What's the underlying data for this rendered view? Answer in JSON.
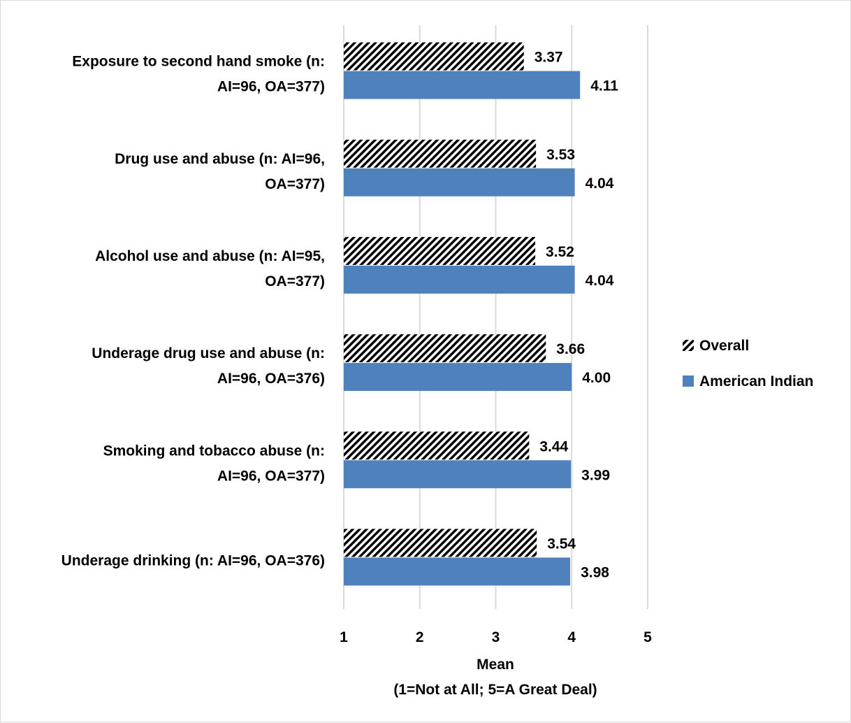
{
  "chart_data": {
    "type": "bar",
    "orientation": "horizontal",
    "categories": [
      [
        "Exposure to second hand smoke (n:",
        "AI=96, OA=377)"
      ],
      [
        "Drug use and abuse (n: AI=96,",
        "OA=377)"
      ],
      [
        "Alcohol use and abuse (n: AI=95,",
        "OA=377)"
      ],
      [
        "Underage drug use and abuse (n:",
        "AI=96, OA=376)"
      ],
      [
        "Smoking and tobacco abuse (n:",
        "AI=96, OA=377)"
      ],
      [
        "Underage drinking (n: AI=96, OA=376)"
      ]
    ],
    "series": [
      {
        "name": "Overall",
        "pattern": "diagonal-hatch",
        "color": "#000000",
        "values": [
          3.37,
          3.53,
          3.52,
          3.66,
          3.44,
          3.54
        ],
        "labels": [
          "3.37",
          "3.53",
          "3.52",
          "3.66",
          "3.44",
          "3.54"
        ]
      },
      {
        "name": "American Indian",
        "pattern": "solid",
        "color": "#4f81bd",
        "values": [
          4.11,
          4.04,
          4.04,
          4.0,
          3.99,
          3.98
        ],
        "labels": [
          "4.11",
          "4.04",
          "4.04",
          "4.00",
          "3.99",
          "3.98"
        ]
      }
    ],
    "x_ticks": [
      "1",
      "2",
      "3",
      "4",
      "5"
    ],
    "xlim": [
      1,
      5
    ],
    "xlabel": [
      "Mean",
      "(1=Not at All; 5=A Great Deal)"
    ],
    "grid": "vertical",
    "legend_position": "right"
  }
}
